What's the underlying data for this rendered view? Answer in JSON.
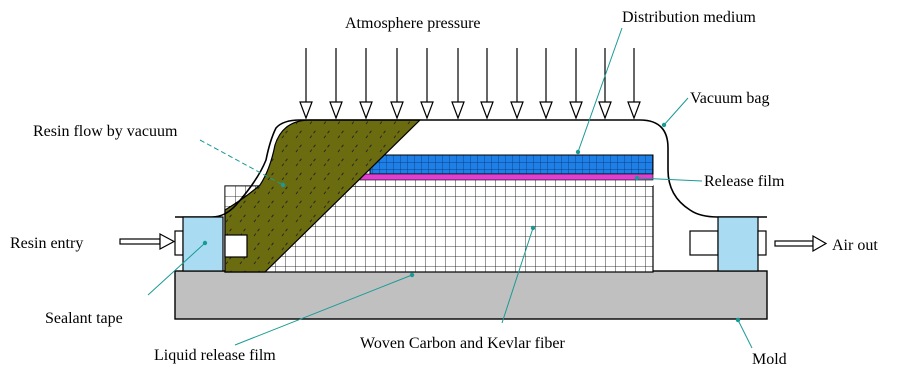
{
  "labels": {
    "atmosphere_pressure": "Atmosphere pressure",
    "distribution_medium": "Distribution medium",
    "vacuum_bag": "Vacuum bag",
    "resin_flow": "Resin flow by vacuum",
    "release_film": "Release film",
    "resin_entry": "Resin entry",
    "air_out": "Air out",
    "sealant_tape": "Sealant tape",
    "liquid_release_film": "Liquid release film",
    "woven_fiber": "Woven Carbon and Kevlar fiber",
    "mold": "Mold"
  },
  "colors": {
    "mold": "#c0c0c0",
    "sealant": "#a9dcf2",
    "distribution_medium": "#1e7fe6",
    "release_film": "#e040d0",
    "resin": "#6b6b10",
    "fiber_grid": "#000000",
    "leader": "#1a9a94",
    "outline": "#000000"
  },
  "icons": {
    "pressure_arrows": "down-arrow-icon",
    "resin_entry_arrow": "right-arrow-icon",
    "air_out_arrow": "right-arrow-icon"
  }
}
